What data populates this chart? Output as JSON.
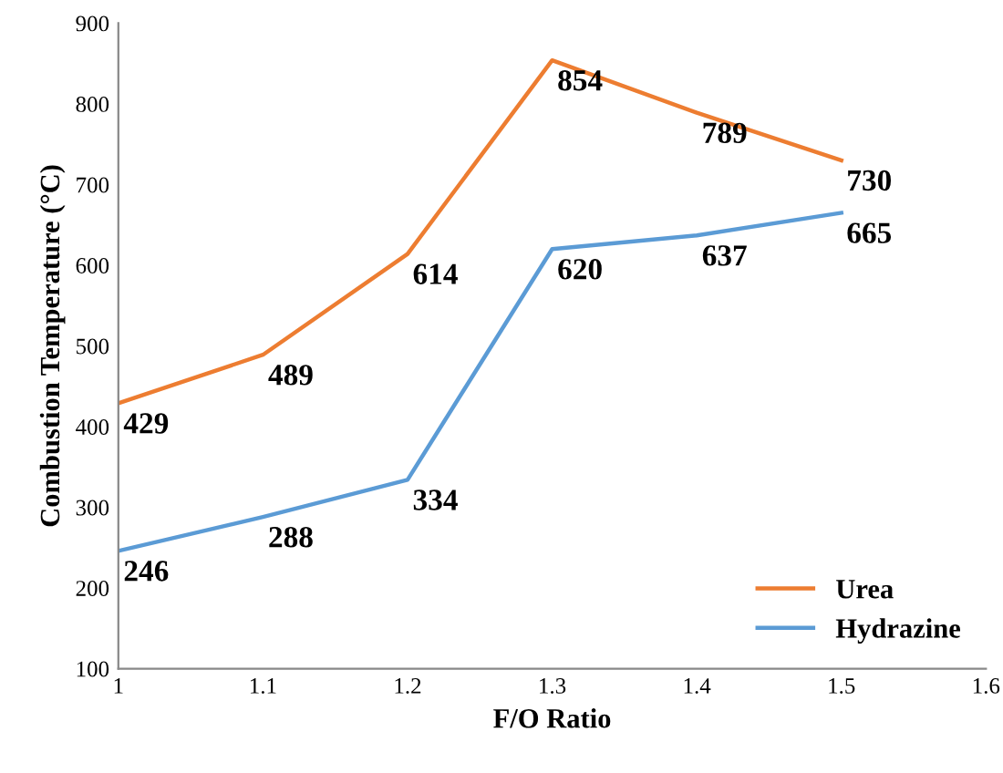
{
  "chart_data": {
    "type": "line",
    "xlabel": "F/O Ratio",
    "ylabel": "Combustion Temperature (°C)",
    "x": [
      1,
      1.1,
      1.2,
      1.3,
      1.4,
      1.5
    ],
    "series": [
      {
        "name": "Urea",
        "color": "#ed7d31",
        "values": [
          429,
          489,
          614,
          854,
          789,
          730
        ]
      },
      {
        "name": "Hydrazine",
        "color": "#5b9bd5",
        "values": [
          246,
          288,
          334,
          620,
          637,
          665
        ]
      }
    ],
    "xlim": [
      1,
      1.6
    ],
    "xticks": [
      1,
      1.1,
      1.2,
      1.3,
      1.4,
      1.5,
      1.6
    ],
    "ylim": [
      100,
      900
    ],
    "yticks": [
      100,
      200,
      300,
      400,
      500,
      600,
      700,
      800,
      900
    ],
    "grid": false,
    "legend": "bottom right",
    "data_labels": true,
    "marker": "none",
    "line_style": "solid"
  }
}
